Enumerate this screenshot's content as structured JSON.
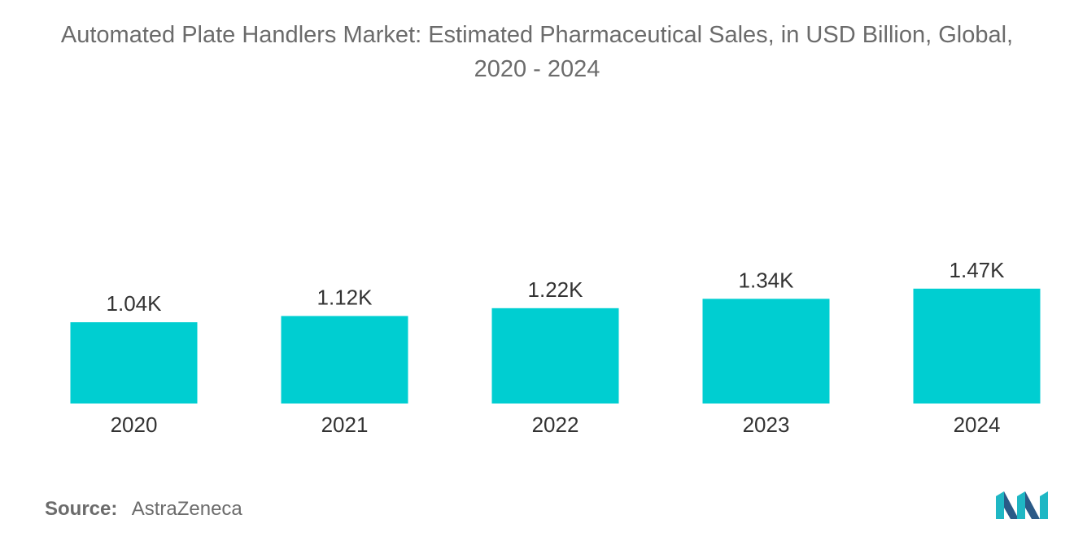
{
  "title_line1": "Automated Plate Handlers Market: Estimated Pharmaceutical Sales, in USD Billion, Global,",
  "title_line2": "2020 - 2024",
  "source_label": "Source:",
  "source_value": "AstraZeneca",
  "colors": {
    "bar": "#00CED1",
    "logo_teal": "#1FB7C4",
    "logo_dark": "#2A5A87"
  },
  "chart_data": {
    "type": "bar",
    "title": "Automated Plate Handlers Market: Estimated Pharmaceutical Sales, in USD Billion, Global, 2020 - 2024",
    "categories": [
      "2020",
      "2021",
      "2022",
      "2023",
      "2024"
    ],
    "values": [
      1040,
      1120,
      1220,
      1340,
      1470
    ],
    "value_labels": [
      "1.04K",
      "1.12K",
      "1.22K",
      "1.34K",
      "1.47K"
    ],
    "xlabel": "",
    "ylabel": "",
    "ylim": [
      0,
      1500
    ],
    "grid": false,
    "legend": "none"
  }
}
